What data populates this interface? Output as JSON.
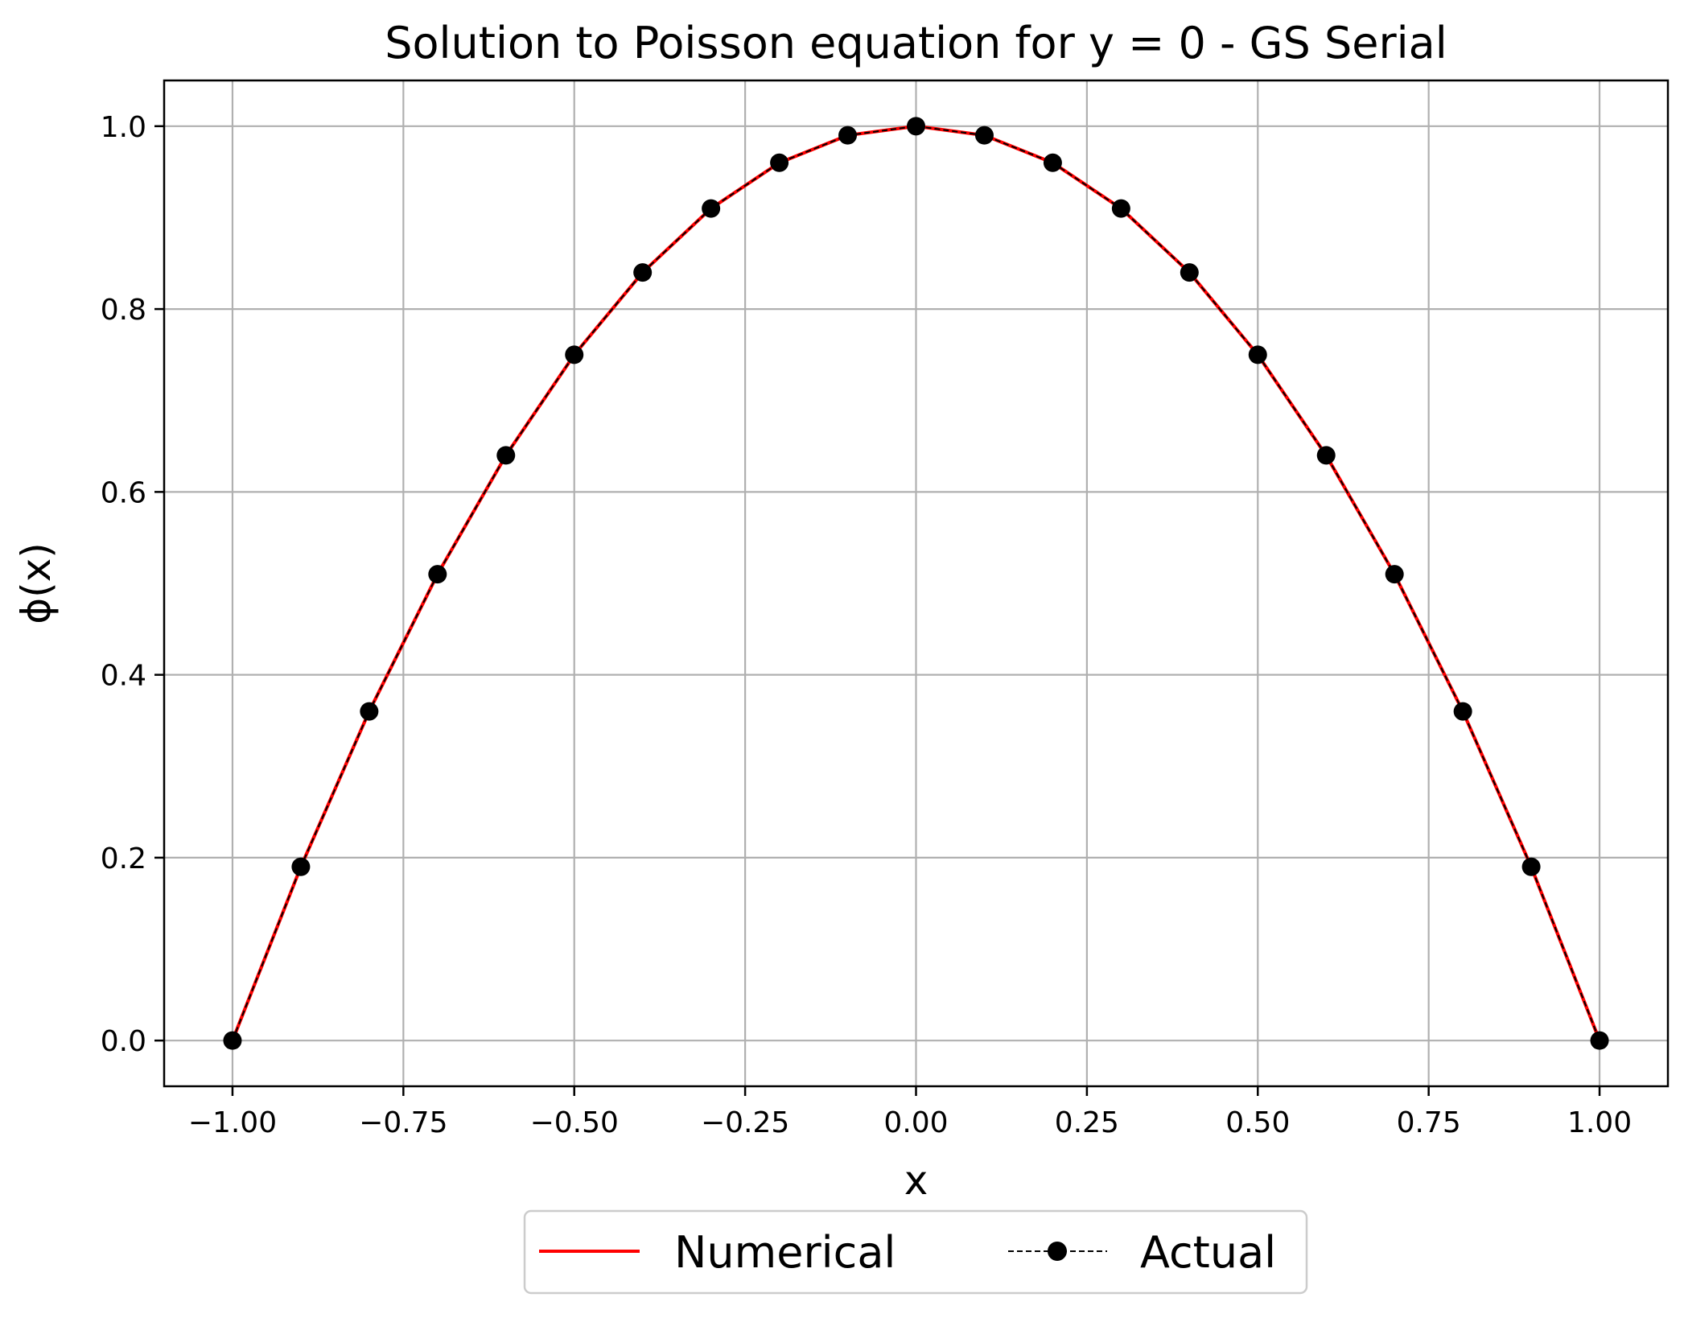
{
  "chart_data": {
    "type": "line",
    "title": "Solution to Poisson equation for y = 0 - GS Serial",
    "xlabel": "x",
    "ylabel": "ϕ(x)",
    "xlim": [
      -1.1,
      1.1
    ],
    "ylim": [
      -0.05,
      1.05
    ],
    "xticks": [
      -1.0,
      -0.75,
      -0.5,
      -0.25,
      0.0,
      0.25,
      0.5,
      0.75,
      1.0
    ],
    "xtick_labels": [
      "−1.00",
      "−0.75",
      "−0.50",
      "−0.25",
      "0.00",
      "0.25",
      "0.50",
      "0.75",
      "1.00"
    ],
    "yticks": [
      0.0,
      0.2,
      0.4,
      0.6,
      0.8,
      1.0
    ],
    "ytick_labels": [
      "0.0",
      "0.2",
      "0.4",
      "0.6",
      "0.8",
      "1.0"
    ],
    "grid": true,
    "legend_position": "bottom-center",
    "x": [
      -1.0,
      -0.9,
      -0.8,
      -0.7,
      -0.6,
      -0.5,
      -0.4,
      -0.3,
      -0.2,
      -0.1,
      0.0,
      0.1,
      0.2,
      0.3,
      0.4,
      0.5,
      0.6,
      0.7,
      0.8,
      0.9,
      1.0
    ],
    "series": [
      {
        "name": "Numerical",
        "style": "solid line",
        "color": "#ff0000",
        "values": [
          0.0,
          0.19,
          0.36,
          0.51,
          0.64,
          0.75,
          0.84,
          0.91,
          0.96,
          0.99,
          1.0,
          0.99,
          0.96,
          0.91,
          0.84,
          0.75,
          0.64,
          0.51,
          0.36,
          0.19,
          0.0
        ]
      },
      {
        "name": "Actual",
        "style": "dashed line with circle markers",
        "color": "#000000",
        "values": [
          0.0,
          0.19,
          0.36,
          0.51,
          0.64,
          0.75,
          0.84,
          0.91,
          0.96,
          0.99,
          1.0,
          0.99,
          0.96,
          0.91,
          0.84,
          0.75,
          0.64,
          0.51,
          0.36,
          0.19,
          0.0
        ]
      }
    ]
  }
}
